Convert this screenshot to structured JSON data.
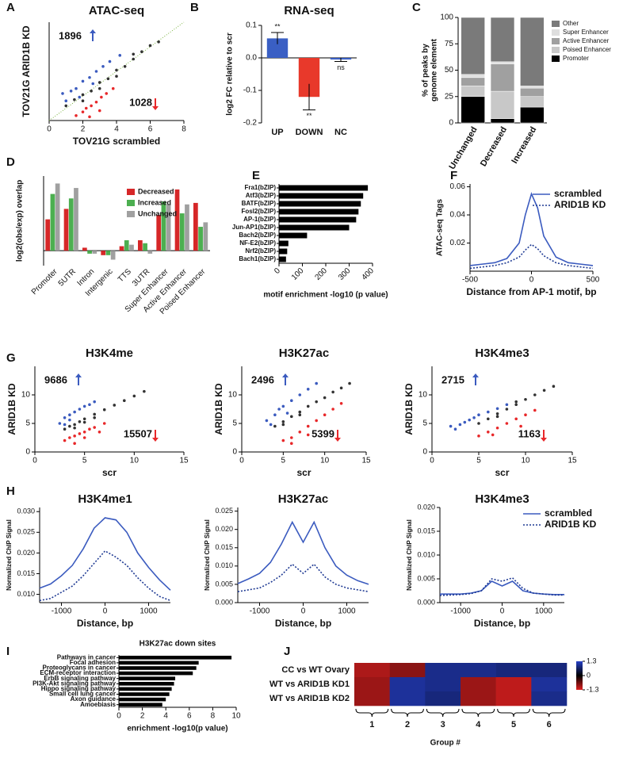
{
  "chart_data": [
    {
      "type": "scatter",
      "panel": "A",
      "title": "ATAC-seq",
      "xlabel": "TOV21G scrambled",
      "ylabel": "TOV21G ARID1B KD",
      "xlim": [
        0,
        8
      ],
      "ylim": [
        0,
        8
      ],
      "xticks": [
        0,
        2,
        4,
        6,
        8
      ],
      "identity_line_color": "#7cb342",
      "up_count": 1896,
      "down_count": 1028,
      "up_color": "#3b5bbf",
      "down_color": "#e8282a",
      "series": [
        {
          "color": "#333333",
          "x": [
            1,
            1.5,
            2,
            2.5,
            3,
            3.5,
            4,
            4.5,
            5,
            5.5,
            6,
            6.5,
            2,
            3,
            4,
            5
          ],
          "y": [
            1.2,
            1.7,
            2.1,
            2.4,
            3.1,
            3.4,
            4.1,
            4.4,
            5,
            5.6,
            6.1,
            6.4,
            1.6,
            2.6,
            3.6,
            5.4
          ]
        },
        {
          "color": "#3b5bbf",
          "x": [
            0.8,
            1,
            1.3,
            1.6,
            2,
            2.4,
            2.8,
            3.2,
            3.6,
            4.2,
            1.8,
            2.6
          ],
          "y": [
            2.2,
            1.6,
            2.4,
            2.6,
            3.2,
            3.5,
            4,
            4.4,
            4.8,
            5.3,
            1.9,
            3
          ]
        },
        {
          "color": "#e8282a",
          "x": [
            1.6,
            2,
            2.2,
            2.5,
            2.8,
            3.1,
            3.4,
            3.8,
            2.4,
            3
          ],
          "y": [
            0.4,
            0.7,
            1,
            1.2,
            1.5,
            1.9,
            2.2,
            2.6,
            0.3,
            0.8
          ]
        }
      ]
    },
    {
      "type": "bar",
      "panel": "B",
      "title": "RNA-seq",
      "ylabel": "log2 FC relative to scr",
      "categories": [
        "UP",
        "DOWN",
        "NC"
      ],
      "values": [
        0.06,
        -0.12,
        -0.005
      ],
      "errors": [
        0.018,
        0.04,
        0.006
      ],
      "colors": [
        "#3a5fc4",
        "#e8392b",
        "#3a5fc4"
      ],
      "significance": [
        "**",
        "**",
        "ns"
      ],
      "ylim": [
        -0.2,
        0.1
      ],
      "yticks": [
        -0.2,
        -0.1,
        {
          "value": 0,
          "label": "0.0"
        },
        0.1
      ]
    },
    {
      "type": "stacked_bar",
      "panel": "C",
      "ylabel": [
        "% of peaks by",
        "genome element"
      ],
      "categories": [
        "Unchanged",
        "Decreased",
        "Increased"
      ],
      "ylim": [
        0,
        100
      ],
      "yticks": [
        0,
        25,
        50,
        75,
        100
      ],
      "series": [
        {
          "name": "Promoter",
          "color": "#000000",
          "values": [
            25,
            4,
            15
          ]
        },
        {
          "name": "Poised Enhancer",
          "color": "#c8c8c8",
          "values": [
            10,
            26,
            10
          ]
        },
        {
          "name": "Active Enhancer",
          "color": "#a0a0a0",
          "values": [
            8,
            26,
            8
          ]
        },
        {
          "name": "Super Enhancer",
          "color": "#dedede",
          "values": [
            3,
            2,
            2
          ]
        },
        {
          "name": "Other",
          "color": "#7a7a7a",
          "values": [
            54,
            42,
            65
          ]
        }
      ]
    },
    {
      "type": "grouped_bar",
      "panel": "D",
      "ylabel": "log2(obs/exp) overlap",
      "ylim": [
        -1,
        5
      ],
      "categories": [
        "Promoter",
        "5UTR",
        "Intron",
        "Intergenic",
        "TTS",
        "3UTR",
        "Super Enhancer",
        "Active Enhancer",
        "Poised Enhancer"
      ],
      "series": [
        {
          "name": "Decreased",
          "color": "#d62728",
          "values": [
            2.1,
            2.8,
            0.2,
            -0.3,
            0.3,
            0.7,
            2.4,
            4.1,
            3.2
          ]
        },
        {
          "name": "Increased",
          "color": "#4caf50",
          "values": [
            3.8,
            3.5,
            -0.2,
            -0.3,
            0.7,
            0.5,
            3.3,
            2.5,
            1.6
          ]
        },
        {
          "name": "Unchanged",
          "color": "#a0a0a0",
          "values": [
            4.5,
            4.2,
            -0.2,
            -0.6,
            0.4,
            -0.2,
            3.1,
            3.1,
            1.9
          ]
        }
      ]
    },
    {
      "type": "hbar",
      "panel": "E",
      "xlabel": "motif enrichment -log10 (p value)",
      "color": "#000000",
      "categories": [
        "Fra1(bZIP)",
        "Atf3(bZIP)",
        "BATF(bZIP)",
        "Fosl2(bZIP)",
        "AP-1(bZIP)",
        "Jun-AP1(bZIP)",
        "Bach2(bZIP)",
        "NF-E2(bZIP)",
        "Nrf2(bZIP)",
        "Bach1(bZIP)"
      ],
      "values": [
        380,
        360,
        350,
        340,
        330,
        300,
        120,
        40,
        35,
        30
      ],
      "xlim": [
        0,
        400
      ],
      "xticks": [
        0,
        100,
        200,
        300,
        400
      ]
    },
    {
      "type": "line",
      "panel": "F",
      "xlabel": "Distance from AP-1 motif, bp",
      "ylabel": "ATAC-seq Tags",
      "x": [
        -500,
        -400,
        -300,
        -200,
        -100,
        -50,
        0,
        50,
        100,
        200,
        300,
        400,
        500
      ],
      "xlim": [
        -500,
        500
      ],
      "xticks": [
        -500,
        0,
        500
      ],
      "ylim": [
        0,
        0.062
      ],
      "yticks": [
        0.02,
        0.04,
        0.06
      ],
      "series": [
        {
          "name": "scrambled",
          "color": "#3b5bbf",
          "line_style": "solid",
          "values": [
            0.004,
            0.005,
            0.006,
            0.009,
            0.02,
            0.04,
            0.055,
            0.045,
            0.025,
            0.01,
            0.006,
            0.005,
            0.004
          ]
        },
        {
          "name": "ARID1B KD",
          "color": "#1f3a93",
          "line_style": "dotted",
          "values": [
            0.002,
            0.003,
            0.004,
            0.006,
            0.01,
            0.015,
            0.019,
            0.016,
            0.011,
            0.006,
            0.004,
            0.003,
            0.002
          ]
        }
      ]
    },
    {
      "type": "scatter",
      "panel": "G",
      "title": "H3K4me",
      "xlabel": "scr",
      "ylabel": "ARID1B KD",
      "xlim": [
        0,
        15
      ],
      "ylim": [
        0,
        15
      ],
      "xticks": [
        0,
        5,
        10,
        15
      ],
      "yticks": [
        0,
        5,
        10
      ],
      "up_count": 9686,
      "down_count": 15507,
      "up_color": "#3b5bbf",
      "down_color": "#e8282a",
      "series": [
        {
          "color": "#333333",
          "x": [
            3,
            3.5,
            4,
            4.5,
            5,
            6,
            7,
            8,
            9,
            10,
            11,
            4,
            5,
            6
          ],
          "y": [
            4,
            4.5,
            4.8,
            5.3,
            5.8,
            6.6,
            7.4,
            8.2,
            9,
            9.8,
            10.6,
            4.2,
            5.2,
            6
          ]
        },
        {
          "color": "#3b5bbf",
          "x": [
            2.5,
            3,
            3,
            3.5,
            4,
            4.5,
            5,
            5.5,
            6,
            3.5
          ],
          "y": [
            5,
            4.8,
            6,
            6.5,
            7,
            7.5,
            8,
            8.3,
            8.8,
            5.6
          ]
        },
        {
          "color": "#e8282a",
          "x": [
            3,
            3.5,
            4,
            4.5,
            5,
            5.5,
            6,
            7,
            4,
            5,
            6.5
          ],
          "y": [
            2,
            2.5,
            2.8,
            3.2,
            3.5,
            4,
            4.3,
            5,
            1.5,
            2.5,
            3.5
          ]
        }
      ]
    },
    {
      "type": "scatter",
      "title": "H3K27ac",
      "xlabel": "scr",
      "ylabel": "ARID1B KD",
      "xlim": [
        0,
        15
      ],
      "ylim": [
        0,
        15
      ],
      "xticks": [
        0,
        5,
        10,
        15
      ],
      "yticks": [
        0,
        5,
        10
      ],
      "up_count": 2496,
      "down_count": 5399,
      "up_color": "#3b5bbf",
      "down_color": "#e8282a",
      "series": [
        {
          "color": "#333333",
          "x": [
            4,
            5,
            6,
            7,
            8,
            9,
            10,
            11,
            12,
            13,
            5,
            7
          ],
          "y": [
            4.5,
            5.3,
            6.2,
            7,
            8,
            8.8,
            9.5,
            10.5,
            11.2,
            12,
            4.8,
            6.5
          ]
        },
        {
          "color": "#3b5bbf",
          "x": [
            3,
            4,
            4.5,
            5,
            6,
            7,
            8,
            9,
            3.5,
            5.5
          ],
          "y": [
            5.5,
            6.5,
            7.5,
            8,
            9,
            10,
            11,
            12,
            4.8,
            6.8
          ]
        },
        {
          "color": "#e8282a",
          "x": [
            5,
            6,
            7,
            8,
            9,
            10,
            11,
            12,
            6,
            8
          ],
          "y": [
            2,
            2.5,
            3.5,
            4.5,
            5.5,
            6.5,
            7.5,
            8.5,
            1.5,
            3
          ]
        }
      ]
    },
    {
      "type": "scatter",
      "title": "H3K4me3",
      "xlabel": "scr",
      "ylabel": "ARID1B KD",
      "xlim": [
        0,
        15
      ],
      "ylim": [
        0,
        15
      ],
      "xticks": [
        0,
        5,
        10,
        15
      ],
      "yticks": [
        0,
        5,
        10
      ],
      "up_count": 2715,
      "down_count": 1163,
      "up_color": "#3b5bbf",
      "down_color": "#e8282a",
      "series": [
        {
          "color": "#333333",
          "x": [
            5,
            6,
            7,
            8,
            9,
            10,
            11,
            12,
            13,
            7,
            9
          ],
          "y": [
            5,
            5.8,
            6.7,
            7.5,
            8.3,
            9.2,
            10,
            10.8,
            11.5,
            6.2,
            8.8
          ]
        },
        {
          "color": "#3b5bbf",
          "x": [
            2,
            3,
            3.5,
            4,
            4.5,
            5,
            6,
            7,
            8,
            2.5
          ],
          "y": [
            4.5,
            4.8,
            5.2,
            5.6,
            6,
            6.5,
            7,
            7.6,
            8.3,
            4
          ]
        },
        {
          "color": "#e8282a",
          "x": [
            5,
            6,
            7,
            8,
            9,
            10,
            11,
            6.5,
            9.5
          ],
          "y": [
            2.8,
            3.5,
            4.2,
            5,
            5.8,
            6.5,
            7.3,
            3,
            4.5
          ]
        }
      ]
    },
    {
      "type": "line",
      "panel": "H",
      "title": "H3K4me1",
      "xlabel": "Distance, bp",
      "ylabel": "Normalized ChIP Signal",
      "x": [
        -1500,
        -1250,
        -1000,
        -750,
        -500,
        -250,
        0,
        250,
        500,
        750,
        1000,
        1250,
        1500
      ],
      "xlim": [
        -1500,
        1500
      ],
      "xticks": [
        -1000,
        0,
        1000
      ],
      "ylim": [
        0.008,
        0.031
      ],
      "yticks": [
        {
          "value": 0.01,
          "label": "0.010"
        },
        0.015,
        {
          "value": 0.02,
          "label": "0.020"
        },
        0.025,
        {
          "value": 0.03,
          "label": "0.030"
        }
      ],
      "series": [
        {
          "color": "#3b5bbf",
          "line_style": "solid",
          "values": [
            0.0115,
            0.0125,
            0.0145,
            0.017,
            0.021,
            0.026,
            0.0285,
            0.028,
            0.025,
            0.02,
            0.0165,
            0.0135,
            0.011
          ]
        },
        {
          "color": "#1f3a93",
          "line_style": "dotted",
          "values": [
            0.0085,
            0.009,
            0.0105,
            0.012,
            0.0145,
            0.0175,
            0.0205,
            0.019,
            0.017,
            0.014,
            0.0115,
            0.0095,
            0.0085
          ]
        }
      ]
    },
    {
      "type": "line",
      "title": "H3K27ac",
      "xlabel": "Distance, bp",
      "ylabel": "Normalized ChIP Signal",
      "x": [
        -1500,
        -1250,
        -1000,
        -750,
        -500,
        -250,
        0,
        250,
        500,
        750,
        1000,
        1250,
        1500
      ],
      "xlim": [
        -1500,
        1500
      ],
      "xticks": [
        -1000,
        0,
        1000
      ],
      "ylim": [
        0,
        0.026
      ],
      "yticks": [
        {
          "value": 0,
          "label": "0.000"
        },
        0.005,
        {
          "value": 0.01,
          "label": "0.010"
        },
        0.015,
        {
          "value": 0.02,
          "label": "0.020"
        },
        0.025
      ],
      "series": [
        {
          "color": "#3b5bbf",
          "line_style": "solid",
          "values": [
            0.0052,
            0.0065,
            0.008,
            0.011,
            0.016,
            0.022,
            0.0165,
            0.022,
            0.015,
            0.01,
            0.0075,
            0.006,
            0.005
          ]
        },
        {
          "color": "#1f3a93",
          "line_style": "dotted",
          "values": [
            0.003,
            0.0035,
            0.004,
            0.0055,
            0.0075,
            0.0105,
            0.008,
            0.0105,
            0.007,
            0.005,
            0.004,
            0.0035,
            0.003
          ]
        }
      ]
    },
    {
      "type": "line",
      "title": "H3K4me3",
      "xlabel": "Distance, bp",
      "ylabel": "Normalized ChIP Signal",
      "x": [
        -1500,
        -1250,
        -1000,
        -750,
        -500,
        -250,
        0,
        250,
        500,
        750,
        1000,
        1250,
        1500
      ],
      "xlim": [
        -1500,
        1500
      ],
      "xticks": [
        -1000,
        0,
        1000
      ],
      "ylim": [
        0,
        0.02
      ],
      "yticks": [
        {
          "value": 0,
          "label": "0.000"
        },
        0.005,
        {
          "value": 0.01,
          "label": "0.010"
        },
        0.015,
        {
          "value": 0.02,
          "label": "0.020"
        }
      ],
      "series": [
        {
          "name": "scrambled",
          "color": "#3b5bbf",
          "line_style": "solid",
          "values": [
            0.0018,
            0.0018,
            0.0018,
            0.002,
            0.0025,
            0.0045,
            0.0035,
            0.0045,
            0.0025,
            0.002,
            0.0018,
            0.0017,
            0.0017
          ]
        },
        {
          "name": "ARID1B KD",
          "color": "#1f3a93",
          "line_style": "dotted",
          "values": [
            0.0015,
            0.0016,
            0.0017,
            0.0019,
            0.0025,
            0.005,
            0.0045,
            0.0052,
            0.003,
            0.002,
            0.0018,
            0.0016,
            0.0016
          ]
        }
      ]
    },
    {
      "type": "hbar",
      "panel": "I",
      "title": "H3K27ac down sites",
      "xlabel": "enrichment -log10(p value)",
      "color": "#000000",
      "categories": [
        "Pathways in cancer",
        "Focal adhesion",
        "Proteoglycans in cancer",
        "ECM-receptor interaction",
        "ErbB signaling pathway",
        "PI3K-Akt signaling pathway",
        "Hippo signaling pathway",
        "Small cell lung cancer",
        "Axon guidance",
        "Amoebiasis"
      ],
      "values": [
        9.6,
        6.8,
        6.6,
        6.3,
        4.8,
        4.7,
        4.5,
        4.3,
        4.0,
        3.7
      ],
      "xlim": [
        0,
        10
      ],
      "xticks": [
        0,
        2,
        4,
        6,
        8,
        10
      ]
    },
    {
      "type": "heatmap",
      "panel": "J",
      "xlabel": "Group #",
      "rows": [
        "CC vs WT Ovary",
        "WT vs ARID1B KD1",
        "WT vs ARID1B KD2"
      ],
      "categories": [
        "1",
        "2",
        "3",
        "4",
        "5",
        "6"
      ],
      "values": [
        [
          -1.0,
          -0.8,
          0.9,
          0.9,
          0.8,
          0.8
        ],
        [
          -0.9,
          1.0,
          0.9,
          -0.9,
          -1.1,
          1.0
        ],
        [
          -0.9,
          1.0,
          0.8,
          -0.9,
          -1.1,
          0.9
        ]
      ],
      "clim": [
        -1.3,
        1.3
      ],
      "colormap": [
        "#e02020",
        "#000000",
        "#2640c8"
      ],
      "colorbar_ticks": [
        1.3,
        0,
        -1.3
      ]
    }
  ]
}
